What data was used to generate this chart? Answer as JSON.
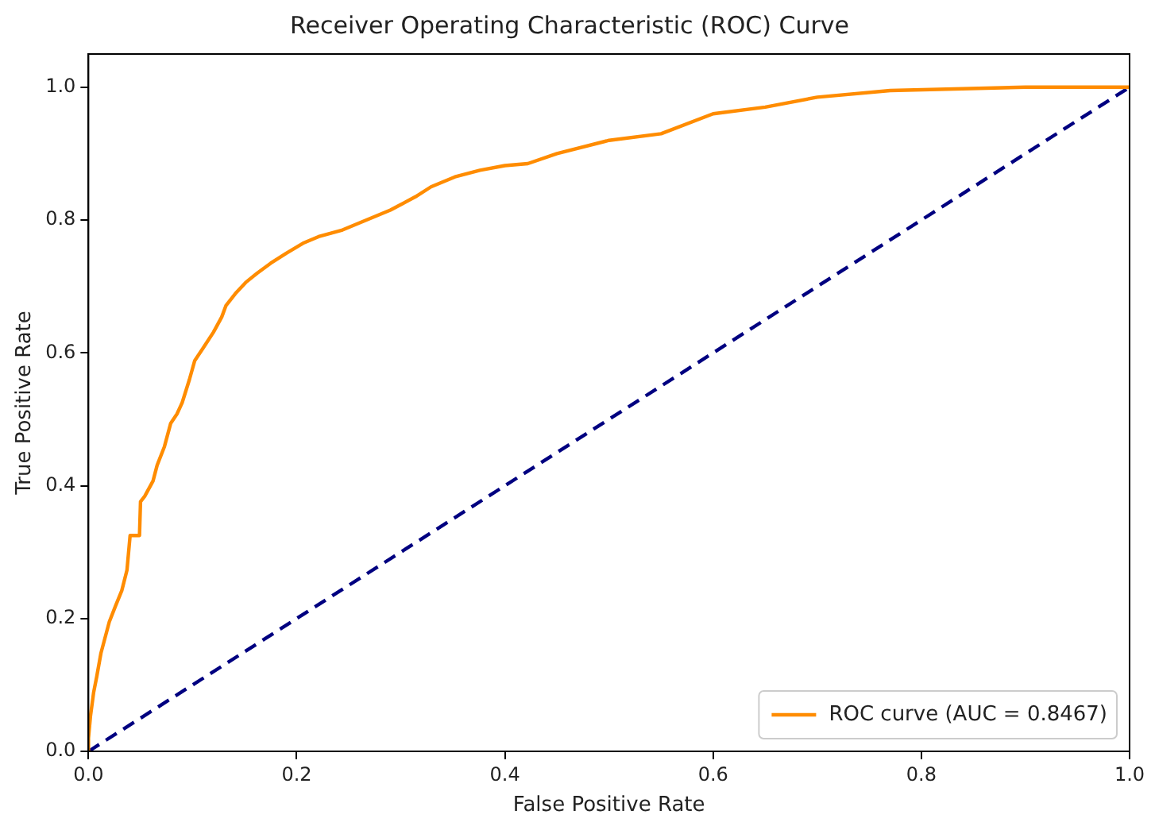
{
  "chart_data": {
    "type": "line",
    "title": "Receiver Operating Characteristic (ROC) Curve",
    "xlabel": "False Positive Rate",
    "ylabel": "True Positive Rate",
    "xlim": [
      0,
      1
    ],
    "ylim": [
      0,
      1.05
    ],
    "xticks": [
      {
        "value": 0,
        "label": "0.0"
      },
      {
        "value": 0.2,
        "label": "0.2"
      },
      {
        "value": 0.4,
        "label": "0.4"
      },
      {
        "value": 0.6,
        "label": "0.6"
      },
      {
        "value": 0.8,
        "label": "0.8"
      },
      {
        "value": 1,
        "label": "1.0"
      }
    ],
    "yticks": [
      {
        "value": 0,
        "label": "0.0"
      },
      {
        "value": 0.2,
        "label": "0.2"
      },
      {
        "value": 0.4,
        "label": "0.4"
      },
      {
        "value": 0.6,
        "label": "0.6"
      },
      {
        "value": 0.8,
        "label": "0.8"
      },
      {
        "value": 1,
        "label": "1.0"
      }
    ],
    "grid": false,
    "legend": "bottom right",
    "marker": "none",
    "series": [
      {
        "name": "ROC curve (AUC = 0.8467)",
        "color": "#ff8c00",
        "line_style": "solid",
        "x": [
          0,
          0,
          0.002,
          0.005,
          0.008,
          0.012,
          0.02,
          0.026,
          0.032,
          0.037,
          0.04,
          0.049,
          0.05,
          0.054,
          0.062,
          0.066,
          0.073,
          0.079,
          0.085,
          0.09,
          0.097,
          0.102,
          0.11,
          0.12,
          0.128,
          0.132,
          0.141,
          0.151,
          0.162,
          0.175,
          0.19,
          0.206,
          0.221,
          0.244,
          0.267,
          0.29,
          0.314,
          0.329,
          0.352,
          0.376,
          0.4,
          0.422,
          0.45,
          0.5,
          0.55,
          0.6,
          0.65,
          0.7,
          0.77,
          0.9,
          1.0
        ],
        "values": [
          0,
          0.02,
          0.054,
          0.089,
          0.113,
          0.148,
          0.195,
          0.219,
          0.242,
          0.273,
          0.325,
          0.325,
          0.376,
          0.384,
          0.407,
          0.431,
          0.459,
          0.494,
          0.508,
          0.525,
          0.56,
          0.588,
          0.607,
          0.631,
          0.654,
          0.671,
          0.689,
          0.706,
          0.72,
          0.735,
          0.75,
          0.765,
          0.775,
          0.785,
          0.8,
          0.815,
          0.835,
          0.85,
          0.865,
          0.875,
          0.882,
          0.885,
          0.9,
          0.92,
          0.93,
          0.96,
          0.97,
          0.985,
          0.995,
          1.0,
          1.0
        ]
      },
      {
        "color": "#000080",
        "line_style": "dashed",
        "x": [
          0,
          1
        ],
        "values": [
          0,
          1
        ]
      }
    ]
  }
}
